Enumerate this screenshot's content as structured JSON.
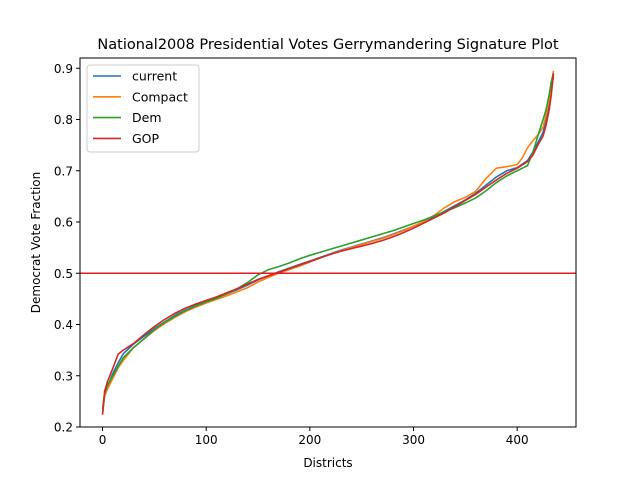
{
  "chart_data": {
    "type": "line",
    "title": "National2008 Presidential Votes Gerrymandering Signature Plot",
    "xlabel": "Districts",
    "ylabel": "Democrat Vote Fraction",
    "xlim": [
      -21.75,
      456.75
    ],
    "ylim": [
      0.2,
      0.92
    ],
    "xticks": [
      0,
      100,
      200,
      300,
      400
    ],
    "yticks": [
      0.2,
      0.3,
      0.4,
      0.5,
      0.6,
      0.7,
      0.8,
      0.9
    ],
    "legend_position": "top-left",
    "grid": false,
    "reference_line": {
      "y": 0.5,
      "color": "#e41a1c"
    },
    "series": [
      {
        "name": "current",
        "color": "#1f77b4",
        "points": [
          [
            0,
            0.226
          ],
          [
            2,
            0.262
          ],
          [
            5,
            0.28
          ],
          [
            10,
            0.305
          ],
          [
            15,
            0.325
          ],
          [
            20,
            0.343
          ],
          [
            30,
            0.362
          ],
          [
            40,
            0.377
          ],
          [
            50,
            0.392
          ],
          [
            60,
            0.405
          ],
          [
            70,
            0.418
          ],
          [
            80,
            0.428
          ],
          [
            90,
            0.437
          ],
          [
            100,
            0.445
          ],
          [
            110,
            0.452
          ],
          [
            120,
            0.46
          ],
          [
            130,
            0.468
          ],
          [
            140,
            0.477
          ],
          [
            150,
            0.487
          ],
          [
            160,
            0.495
          ],
          [
            170,
            0.503
          ],
          [
            180,
            0.51
          ],
          [
            190,
            0.517
          ],
          [
            200,
            0.524
          ],
          [
            210,
            0.531
          ],
          [
            220,
            0.538
          ],
          [
            230,
            0.545
          ],
          [
            240,
            0.551
          ],
          [
            250,
            0.557
          ],
          [
            260,
            0.563
          ],
          [
            270,
            0.569
          ],
          [
            280,
            0.576
          ],
          [
            290,
            0.584
          ],
          [
            300,
            0.592
          ],
          [
            310,
            0.6
          ],
          [
            320,
            0.61
          ],
          [
            330,
            0.621
          ],
          [
            340,
            0.632
          ],
          [
            350,
            0.643
          ],
          [
            360,
            0.656
          ],
          [
            370,
            0.672
          ],
          [
            380,
            0.688
          ],
          [
            390,
            0.7
          ],
          [
            400,
            0.706
          ],
          [
            410,
            0.72
          ],
          [
            415,
            0.736
          ],
          [
            420,
            0.755
          ],
          [
            425,
            0.775
          ],
          [
            428,
            0.8
          ],
          [
            431,
            0.83
          ],
          [
            433,
            0.86
          ],
          [
            435,
            0.885
          ]
        ]
      },
      {
        "name": "Compact",
        "color": "#ff7f0e",
        "points": [
          [
            0,
            0.228
          ],
          [
            2,
            0.26
          ],
          [
            5,
            0.275
          ],
          [
            10,
            0.295
          ],
          [
            15,
            0.315
          ],
          [
            20,
            0.33
          ],
          [
            30,
            0.355
          ],
          [
            40,
            0.372
          ],
          [
            50,
            0.388
          ],
          [
            60,
            0.402
          ],
          [
            70,
            0.414
          ],
          [
            80,
            0.425
          ],
          [
            90,
            0.434
          ],
          [
            100,
            0.442
          ],
          [
            110,
            0.449
          ],
          [
            120,
            0.456
          ],
          [
            130,
            0.464
          ],
          [
            140,
            0.472
          ],
          [
            150,
            0.483
          ],
          [
            160,
            0.492
          ],
          [
            170,
            0.5
          ],
          [
            180,
            0.507
          ],
          [
            190,
            0.514
          ],
          [
            200,
            0.522
          ],
          [
            210,
            0.53
          ],
          [
            220,
            0.537
          ],
          [
            230,
            0.544
          ],
          [
            240,
            0.55
          ],
          [
            250,
            0.556
          ],
          [
            260,
            0.562
          ],
          [
            270,
            0.568
          ],
          [
            280,
            0.575
          ],
          [
            290,
            0.583
          ],
          [
            300,
            0.592
          ],
          [
            310,
            0.601
          ],
          [
            320,
            0.613
          ],
          [
            330,
            0.628
          ],
          [
            340,
            0.64
          ],
          [
            350,
            0.648
          ],
          [
            360,
            0.66
          ],
          [
            370,
            0.685
          ],
          [
            380,
            0.705
          ],
          [
            390,
            0.708
          ],
          [
            400,
            0.712
          ],
          [
            405,
            0.725
          ],
          [
            410,
            0.745
          ],
          [
            415,
            0.758
          ],
          [
            420,
            0.77
          ],
          [
            425,
            0.785
          ],
          [
            428,
            0.81
          ],
          [
            431,
            0.84
          ],
          [
            433,
            0.87
          ],
          [
            435,
            0.895
          ]
        ]
      },
      {
        "name": "Dem",
        "color": "#2ca02c",
        "points": [
          [
            0,
            0.235
          ],
          [
            2,
            0.265
          ],
          [
            5,
            0.282
          ],
          [
            10,
            0.3
          ],
          [
            15,
            0.318
          ],
          [
            20,
            0.335
          ],
          [
            30,
            0.355
          ],
          [
            40,
            0.372
          ],
          [
            50,
            0.39
          ],
          [
            60,
            0.404
          ],
          [
            70,
            0.416
          ],
          [
            80,
            0.427
          ],
          [
            90,
            0.436
          ],
          [
            100,
            0.444
          ],
          [
            110,
            0.451
          ],
          [
            120,
            0.46
          ],
          [
            130,
            0.47
          ],
          [
            140,
            0.482
          ],
          [
            150,
            0.497
          ],
          [
            160,
            0.507
          ],
          [
            170,
            0.513
          ],
          [
            180,
            0.52
          ],
          [
            190,
            0.528
          ],
          [
            200,
            0.535
          ],
          [
            210,
            0.541
          ],
          [
            220,
            0.547
          ],
          [
            230,
            0.553
          ],
          [
            240,
            0.559
          ],
          [
            250,
            0.565
          ],
          [
            260,
            0.571
          ],
          [
            270,
            0.577
          ],
          [
            280,
            0.583
          ],
          [
            290,
            0.59
          ],
          [
            300,
            0.597
          ],
          [
            310,
            0.604
          ],
          [
            320,
            0.612
          ],
          [
            330,
            0.62
          ],
          [
            340,
            0.628
          ],
          [
            350,
            0.637
          ],
          [
            360,
            0.647
          ],
          [
            370,
            0.661
          ],
          [
            380,
            0.677
          ],
          [
            390,
            0.69
          ],
          [
            400,
            0.7
          ],
          [
            405,
            0.705
          ],
          [
            410,
            0.71
          ],
          [
            415,
            0.735
          ],
          [
            420,
            0.768
          ],
          [
            425,
            0.8
          ],
          [
            428,
            0.82
          ],
          [
            431,
            0.85
          ],
          [
            433,
            0.875
          ],
          [
            435,
            0.89
          ]
        ]
      },
      {
        "name": "GOP",
        "color": "#d62728",
        "points": [
          [
            0,
            0.224
          ],
          [
            2,
            0.27
          ],
          [
            5,
            0.29
          ],
          [
            10,
            0.315
          ],
          [
            15,
            0.342
          ],
          [
            20,
            0.35
          ],
          [
            30,
            0.363
          ],
          [
            40,
            0.38
          ],
          [
            50,
            0.396
          ],
          [
            60,
            0.41
          ],
          [
            70,
            0.422
          ],
          [
            80,
            0.432
          ],
          [
            90,
            0.44
          ],
          [
            100,
            0.447
          ],
          [
            110,
            0.454
          ],
          [
            120,
            0.462
          ],
          [
            130,
            0.47
          ],
          [
            140,
            0.479
          ],
          [
            150,
            0.488
          ],
          [
            160,
            0.495
          ],
          [
            170,
            0.502
          ],
          [
            180,
            0.509
          ],
          [
            190,
            0.516
          ],
          [
            200,
            0.523
          ],
          [
            210,
            0.53
          ],
          [
            220,
            0.537
          ],
          [
            230,
            0.543
          ],
          [
            240,
            0.548
          ],
          [
            250,
            0.553
          ],
          [
            260,
            0.558
          ],
          [
            270,
            0.564
          ],
          [
            280,
            0.571
          ],
          [
            290,
            0.579
          ],
          [
            300,
            0.588
          ],
          [
            310,
            0.598
          ],
          [
            320,
            0.608
          ],
          [
            330,
            0.618
          ],
          [
            340,
            0.63
          ],
          [
            350,
            0.642
          ],
          [
            360,
            0.654
          ],
          [
            370,
            0.668
          ],
          [
            380,
            0.682
          ],
          [
            390,
            0.695
          ],
          [
            400,
            0.705
          ],
          [
            410,
            0.718
          ],
          [
            415,
            0.73
          ],
          [
            420,
            0.75
          ],
          [
            425,
            0.768
          ],
          [
            428,
            0.79
          ],
          [
            431,
            0.82
          ],
          [
            433,
            0.85
          ],
          [
            435,
            0.89
          ]
        ]
      }
    ]
  }
}
